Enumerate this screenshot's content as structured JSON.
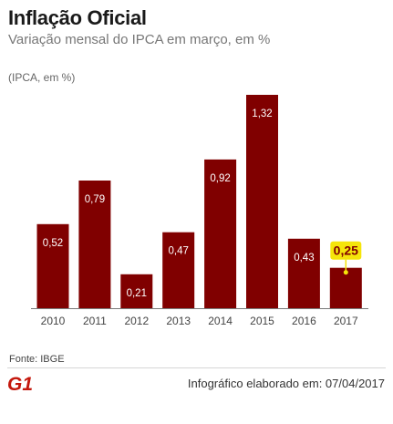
{
  "header": {
    "title": "Inflação Oficial",
    "subtitle": "Variação mensal do IPCA em março, em %"
  },
  "chart_data": {
    "type": "bar",
    "unit_label": "(IPCA, em %)",
    "categories": [
      "2010",
      "2011",
      "2012",
      "2013",
      "2014",
      "2015",
      "2016",
      "2017"
    ],
    "values": [
      0.52,
      0.79,
      0.21,
      0.47,
      0.92,
      1.32,
      0.43,
      0.25
    ],
    "value_labels": [
      "0,52",
      "0,79",
      "0,21",
      "0,47",
      "0,92",
      "1,32",
      "0,43",
      "0,25"
    ],
    "highlight_index": 7,
    "ylim": [
      0,
      1.32
    ],
    "grid": false,
    "legend": "none",
    "colors": {
      "bar": "#800000",
      "highlight_label_bg": "#f5e50a",
      "highlight_label_text": "#800000",
      "axis": "#7a7a7a"
    }
  },
  "footer": {
    "source": "Fonte: IBGE",
    "credit": "Infográfico elaborado em: 07/04/2017",
    "logo_text": "G1",
    "logo_icon": "g1-logo-icon",
    "logo_color": "#c4170c"
  }
}
